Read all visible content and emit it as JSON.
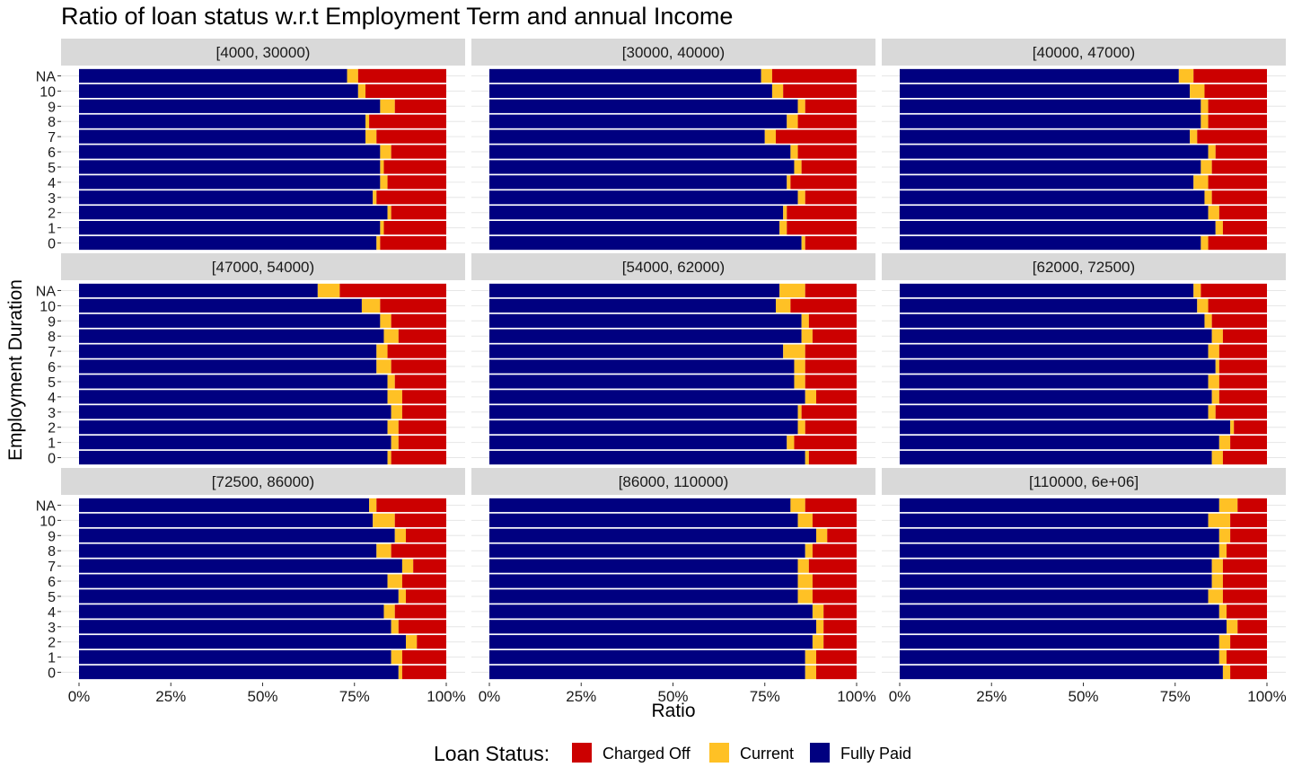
{
  "chart_data": {
    "type": "bar",
    "orientation": "horizontal-stacked-100",
    "title": "Ratio of loan status w.r.t Employment Term and annual Income",
    "xlabel": "Ratio",
    "ylabel": "Employment Duration",
    "xlim": [
      0,
      1
    ],
    "x_ticks": [
      "0%",
      "25%",
      "50%",
      "75%",
      "100%"
    ],
    "categories": [
      "0",
      "1",
      "2",
      "3",
      "4",
      "5",
      "6",
      "7",
      "8",
      "9",
      "10",
      "NA"
    ],
    "series_order": [
      "Fully Paid",
      "Current",
      "Charged Off"
    ],
    "colors": {
      "Fully Paid": "#000080",
      "Current": "#FFC125",
      "Charged Off": "#CC0000"
    },
    "grid": true,
    "legend": {
      "title": "Loan Status:",
      "position": "bottom",
      "items": [
        "Charged Off",
        "Current",
        "Fully Paid"
      ]
    },
    "facets": [
      {
        "label": "[4000, 30000)",
        "fully_paid": [
          0.81,
          0.82,
          0.84,
          0.8,
          0.82,
          0.82,
          0.82,
          0.78,
          0.78,
          0.82,
          0.76,
          0.73
        ],
        "current": [
          0.01,
          0.01,
          0.01,
          0.01,
          0.02,
          0.01,
          0.03,
          0.03,
          0.01,
          0.04,
          0.02,
          0.03
        ]
      },
      {
        "label": "[30000, 40000)",
        "fully_paid": [
          0.85,
          0.79,
          0.8,
          0.84,
          0.81,
          0.83,
          0.82,
          0.75,
          0.81,
          0.84,
          0.77,
          0.74
        ],
        "current": [
          0.01,
          0.02,
          0.01,
          0.02,
          0.01,
          0.02,
          0.02,
          0.03,
          0.03,
          0.02,
          0.03,
          0.03
        ]
      },
      {
        "label": "[40000, 47000)",
        "fully_paid": [
          0.82,
          0.86,
          0.84,
          0.83,
          0.8,
          0.82,
          0.84,
          0.79,
          0.82,
          0.82,
          0.79,
          0.76
        ],
        "current": [
          0.02,
          0.02,
          0.03,
          0.02,
          0.04,
          0.03,
          0.02,
          0.02,
          0.02,
          0.02,
          0.04,
          0.04
        ]
      },
      {
        "label": "[47000, 54000)",
        "fully_paid": [
          0.84,
          0.85,
          0.84,
          0.85,
          0.84,
          0.84,
          0.81,
          0.81,
          0.83,
          0.82,
          0.77,
          0.65
        ],
        "current": [
          0.01,
          0.02,
          0.03,
          0.03,
          0.04,
          0.02,
          0.04,
          0.03,
          0.04,
          0.03,
          0.05,
          0.06
        ]
      },
      {
        "label": "[54000, 62000)",
        "fully_paid": [
          0.86,
          0.81,
          0.84,
          0.84,
          0.86,
          0.83,
          0.83,
          0.8,
          0.85,
          0.85,
          0.78,
          0.79
        ],
        "current": [
          0.01,
          0.02,
          0.02,
          0.01,
          0.03,
          0.03,
          0.03,
          0.06,
          0.03,
          0.02,
          0.04,
          0.07
        ]
      },
      {
        "label": "[62000, 72500)",
        "fully_paid": [
          0.85,
          0.87,
          0.9,
          0.84,
          0.85,
          0.84,
          0.86,
          0.84,
          0.85,
          0.83,
          0.81,
          0.8
        ],
        "current": [
          0.03,
          0.03,
          0.01,
          0.02,
          0.02,
          0.03,
          0.01,
          0.03,
          0.03,
          0.02,
          0.03,
          0.02
        ]
      },
      {
        "label": "[72500, 86000)",
        "fully_paid": [
          0.87,
          0.85,
          0.89,
          0.85,
          0.83,
          0.87,
          0.84,
          0.88,
          0.81,
          0.86,
          0.8,
          0.79
        ],
        "current": [
          0.01,
          0.03,
          0.03,
          0.02,
          0.03,
          0.02,
          0.04,
          0.03,
          0.04,
          0.03,
          0.06,
          0.02
        ]
      },
      {
        "label": "[86000, 110000)",
        "fully_paid": [
          0.86,
          0.86,
          0.88,
          0.89,
          0.88,
          0.84,
          0.84,
          0.84,
          0.86,
          0.89,
          0.84,
          0.82
        ],
        "current": [
          0.03,
          0.03,
          0.03,
          0.02,
          0.03,
          0.04,
          0.04,
          0.03,
          0.02,
          0.03,
          0.04,
          0.04
        ]
      },
      {
        "label": "[110000, 6e+06]",
        "fully_paid": [
          0.88,
          0.87,
          0.87,
          0.89,
          0.87,
          0.84,
          0.85,
          0.85,
          0.87,
          0.87,
          0.84,
          0.87
        ],
        "current": [
          0.02,
          0.02,
          0.03,
          0.03,
          0.02,
          0.04,
          0.03,
          0.03,
          0.02,
          0.03,
          0.06,
          0.05
        ]
      }
    ]
  }
}
